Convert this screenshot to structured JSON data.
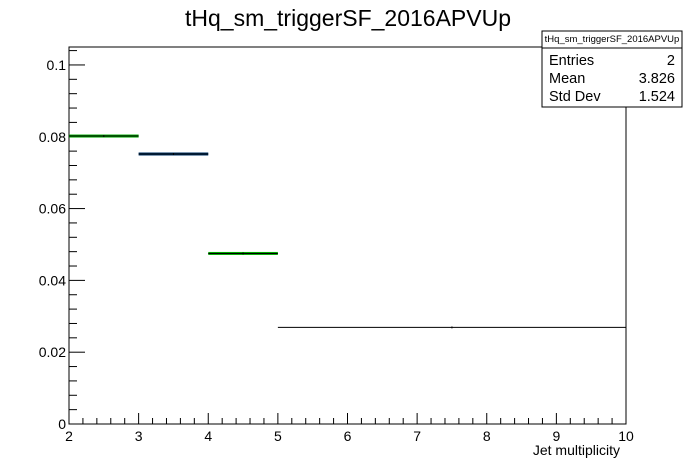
{
  "chart_data": {
    "type": "histogram",
    "title": "tHq_sm_triggerSF_2016APVUp",
    "xlabel": "Jet multiplicity",
    "ylabel": "",
    "xlim": [
      2,
      10
    ],
    "ylim": [
      0,
      0.105
    ],
    "x_ticks": [
      2,
      3,
      4,
      5,
      6,
      7,
      8,
      9,
      10
    ],
    "x_tick_labels": [
      "2",
      "3",
      "4",
      "5",
      "6",
      "7",
      "8",
      "9",
      "10"
    ],
    "y_ticks": [
      0,
      0.02,
      0.04,
      0.06,
      0.08,
      0.1
    ],
    "y_tick_labels": [
      "0",
      "0.02",
      "0.04",
      "0.06",
      "0.08",
      "0.1"
    ],
    "bins": [
      {
        "low": 2,
        "high": 3,
        "value": 0.0802,
        "line_color": "#000000",
        "error_color": "#00aa00"
      },
      {
        "low": 3,
        "high": 4,
        "value": 0.0752,
        "line_color": "#000000",
        "error_color": "#003366"
      },
      {
        "low": 4,
        "high": 5,
        "value": 0.0475,
        "line_color": "#000000",
        "error_color": "#00aa00"
      },
      {
        "low": 5,
        "high": 10,
        "value": 0.0269,
        "line_color": "#000000",
        "error_color": null
      }
    ],
    "stats_box": {
      "title": "tHq_sm_triggerSF_2016APVUp",
      "rows": [
        {
          "label": "Entries",
          "value": "2"
        },
        {
          "label": "Mean",
          "value": "3.826"
        },
        {
          "label": "Std Dev",
          "value": "1.524"
        }
      ]
    },
    "grid": false,
    "legend": "top-right stats box"
  }
}
